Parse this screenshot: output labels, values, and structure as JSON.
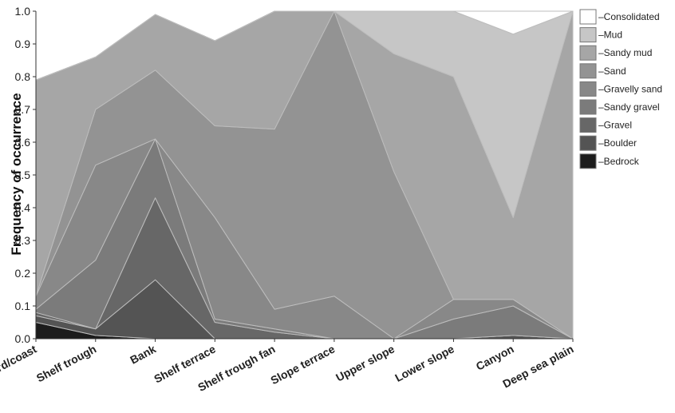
{
  "chart_data": {
    "type": "area",
    "stacked": true,
    "title": "",
    "xlabel": "",
    "ylabel": "Frequency of occurrence",
    "ylim": [
      0,
      1
    ],
    "yticks": [
      "0.0",
      "0.1",
      "0.2",
      "0.3",
      "0.4",
      "0.5",
      "0.6",
      "0.7",
      "0.8",
      "0.9",
      "1.0"
    ],
    "categories": [
      "Fjord/coast",
      "Shelf trough",
      "Bank",
      "Shelf terrace",
      "Shelf trough fan",
      "Slope terrace",
      "Upper slope",
      "Lower slope",
      "Canyon",
      "Deep sea plain"
    ],
    "grid": false,
    "legend_position": "right",
    "series": [
      {
        "name": "Bedrock",
        "color": "#1c1c1c",
        "values": [
          0.05,
          0.01,
          0.0,
          0.0,
          0.0,
          0.0,
          0.0,
          0.0,
          0.0,
          0.0
        ]
      },
      {
        "name": "Boulder",
        "color": "#545454",
        "values": [
          0.02,
          0.02,
          0.18,
          0.0,
          0.0,
          0.0,
          0.0,
          0.0,
          0.01,
          0.0
        ]
      },
      {
        "name": "Gravel",
        "color": "#676767",
        "values": [
          0.01,
          0.0,
          0.25,
          0.05,
          0.02,
          0.0,
          0.0,
          0.0,
          0.0,
          0.0
        ]
      },
      {
        "name": "Sandy gravel",
        "color": "#7b7b7b",
        "values": [
          0.01,
          0.21,
          0.18,
          0.01,
          0.01,
          0.0,
          0.0,
          0.06,
          0.09,
          0.0
        ]
      },
      {
        "name": "Gravelly sand",
        "color": "#888888",
        "values": [
          0.04,
          0.29,
          0.0,
          0.31,
          0.06,
          0.13,
          0.0,
          0.06,
          0.02,
          0.0
        ]
      },
      {
        "name": "Sand",
        "color": "#939393",
        "values": [
          0.0,
          0.17,
          0.21,
          0.28,
          0.55,
          0.87,
          0.51,
          0.0,
          0.0,
          0.0
        ]
      },
      {
        "name": "Sandy mud",
        "color": "#a6a6a6",
        "values": [
          0.66,
          0.16,
          0.17,
          0.26,
          0.36,
          0.0,
          0.36,
          0.68,
          0.25,
          1.0
        ]
      },
      {
        "name": "Mud",
        "color": "#c6c6c6",
        "values": [
          0.0,
          0.0,
          0.0,
          0.0,
          0.0,
          0.0,
          0.13,
          0.2,
          0.56,
          0.0
        ]
      },
      {
        "name": "Consolidated",
        "color": "#ffffff",
        "values": [
          0.0,
          0.0,
          0.0,
          0.0,
          0.0,
          0.0,
          0.0,
          0.0,
          0.07,
          0.0
        ]
      }
    ]
  }
}
